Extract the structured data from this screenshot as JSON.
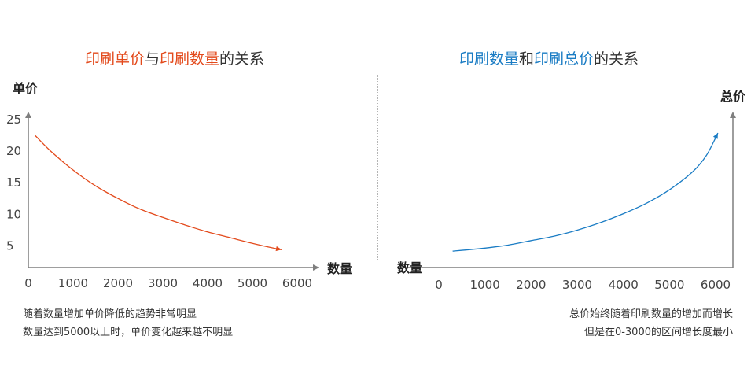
{
  "colors": {
    "accent_orange": "#e34a1c",
    "accent_blue": "#1a7cc4",
    "text": "#333333",
    "axis": "#7f7f7f"
  },
  "left": {
    "title_parts": [
      {
        "text": "印刷单价",
        "accent": true
      },
      {
        "text": "与",
        "accent": false
      },
      {
        "text": "印刷数量",
        "accent": true
      },
      {
        "text": "的关系",
        "accent": false
      }
    ],
    "note_lines": [
      "随着数量增加单价降低的趋势非常明显",
      "数量达到5000以上时，单价变化越来越不明显"
    ]
  },
  "right": {
    "title_parts": [
      {
        "text": "印刷数量",
        "accent": true
      },
      {
        "text": "和",
        "accent": false
      },
      {
        "text": "印刷总价",
        "accent": true
      },
      {
        "text": "的关系",
        "accent": false
      }
    ],
    "note_lines": [
      "总价始终随着印刷数量的增加而增长",
      "但是在0-3000的区间增长度最小"
    ]
  },
  "chart_data": [
    {
      "type": "line",
      "title": "印刷单价与印刷数量的关系",
      "xlabel": "数量",
      "ylabel": "单价",
      "x_ticks": [
        0,
        1000,
        2000,
        3000,
        4000,
        5000,
        6000
      ],
      "y_ticks": [
        5,
        10,
        15,
        20,
        25
      ],
      "xlim": [
        0,
        6000
      ],
      "ylim": [
        2.5,
        26
      ],
      "grid": false,
      "series": [
        {
          "color": "#e34a1c",
          "x": [
            150,
            500,
            1000,
            1500,
            2000,
            2500,
            3000,
            3500,
            4000,
            4500,
            5000,
            5500,
            5650
          ],
          "y": [
            22.5,
            20.0,
            17.0,
            14.5,
            12.5,
            10.8,
            9.5,
            8.3,
            7.2,
            6.3,
            5.4,
            4.6,
            4.4
          ]
        }
      ]
    },
    {
      "type": "line",
      "title": "印刷数量和印刷总价的关系",
      "xlabel": "数量",
      "ylabel": "总价",
      "x_ticks": [
        0,
        1000,
        2000,
        3000,
        4000,
        5000,
        6000
      ],
      "y_ticks": [],
      "xlim": [
        0,
        6000
      ],
      "ylim": [
        0,
        100
      ],
      "grid": false,
      "series": [
        {
          "color": "#1a7cc4",
          "x": [
            300,
            1000,
            1500,
            2000,
            2500,
            3000,
            3500,
            4000,
            4500,
            5000,
            5500,
            5800,
            6050
          ],
          "y": [
            11,
            13,
            15,
            18,
            21,
            25,
            30,
            36,
            43,
            52,
            64,
            75,
            90
          ]
        }
      ]
    }
  ]
}
